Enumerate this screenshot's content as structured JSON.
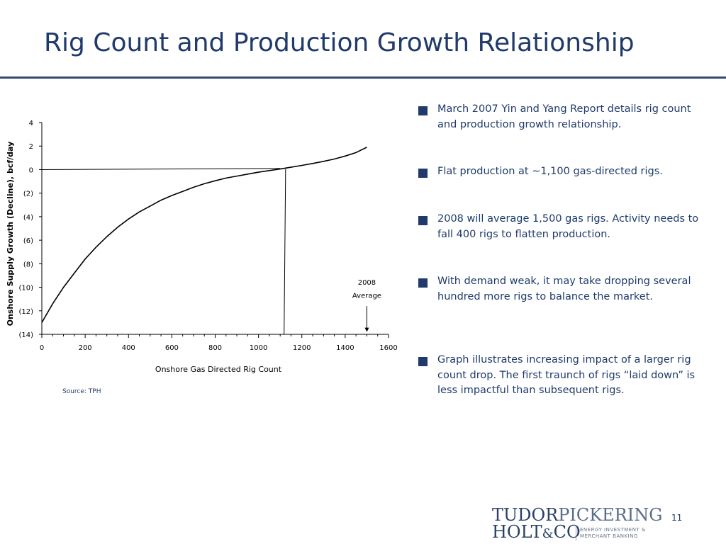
{
  "slide": {
    "title": "Rig Count and Production Growth Relationship",
    "source": "Source:  TPH",
    "page_number": "11"
  },
  "bullets": [
    "March 2007 Yin and Yang Report details rig count and production growth relationship.",
    "Flat production at ~1,100 gas-directed rigs.",
    "2008 will average 1,500 gas rigs.  Activity needs to fall 400 rigs to flatten production.",
    "With demand weak, it may take dropping several hundred more rigs to balance the market.",
    "Graph illustrates increasing impact of a larger rig count drop.  The first traunch of rigs “laid down” is less impactful than subsequent rigs."
  ],
  "logo": {
    "line1_bold": "TUDOR",
    "line1_light": "PICKERING",
    "line2": "HOLT",
    "amp": "&",
    "co": "CO",
    "tag1": "ENERGY INVESTMENT &",
    "tag2": "MERCHANT BANKING"
  },
  "colors": {
    "title": "#1f3a6b",
    "rule": "#2f4a73",
    "text": "#1f3a6b",
    "curve": "#000000"
  },
  "chart_data": {
    "type": "line",
    "title": "",
    "xlabel": "Onshore Gas Directed Rig Count",
    "ylabel": "Onshore Supply Growth (Decline), bcf/day",
    "xlim": [
      0,
      1600
    ],
    "ylim": [
      -14,
      4
    ],
    "x_ticks": [
      0,
      200,
      400,
      600,
      800,
      1000,
      1200,
      1400,
      1600
    ],
    "x_tick_labels": [
      "0",
      "200",
      "400",
      "600",
      "800",
      "1000",
      "1200",
      "1400",
      "1600"
    ],
    "y_ticks": [
      4,
      2,
      0,
      -2,
      -4,
      -6,
      -8,
      -10,
      -12,
      -14
    ],
    "y_tick_labels": [
      "4",
      "2",
      "0",
      "(2)",
      "(4)",
      "(6)",
      "(8)",
      "(10)",
      "(12)",
      "(14)"
    ],
    "grid": false,
    "series": [
      {
        "x": [
          0,
          50,
          100,
          150,
          200,
          250,
          300,
          350,
          400,
          450,
          500,
          550,
          600,
          650,
          700,
          750,
          800,
          850,
          900,
          950,
          1000,
          1050,
          1100,
          1150,
          1200,
          1250,
          1300,
          1350,
          1400,
          1450,
          1500
        ],
        "values": [
          -13.0,
          -11.4,
          -10.0,
          -8.8,
          -7.6,
          -6.6,
          -5.7,
          -4.9,
          -4.2,
          -3.6,
          -3.1,
          -2.6,
          -2.2,
          -1.85,
          -1.5,
          -1.2,
          -0.95,
          -0.72,
          -0.55,
          -0.38,
          -0.22,
          -0.08,
          0.05,
          0.2,
          0.36,
          0.52,
          0.7,
          0.9,
          1.15,
          1.45,
          1.9
        ]
      }
    ],
    "reference_lines": [
      {
        "from": [
          0,
          0.0
        ],
        "to": [
          1100,
          0.1
        ]
      },
      {
        "from": [
          1125,
          0.05
        ],
        "to": [
          1118,
          -14
        ]
      }
    ],
    "annotations": [
      {
        "text": "2008",
        "x": 1500,
        "y": -9.8
      },
      {
        "text": "Average",
        "x": 1500,
        "y": -10.9
      }
    ],
    "arrow": {
      "x": 1500,
      "from_y": -11.6,
      "to_y": -13.8
    }
  }
}
